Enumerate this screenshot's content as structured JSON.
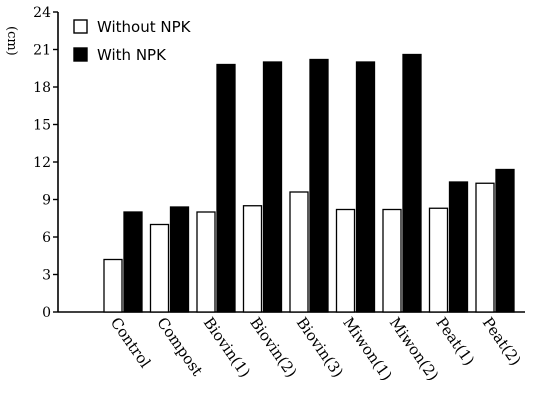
{
  "chart_data": {
    "type": "bar",
    "title": "",
    "xlabel": "",
    "ylabel": "(cm)",
    "ylim": [
      0,
      24
    ],
    "yticks": [
      0,
      3,
      6,
      9,
      12,
      15,
      18,
      21,
      24
    ],
    "grid": false,
    "legend_position": "top-left",
    "categories": [
      "Control",
      "Compost",
      "Biovin(1)",
      "Biovin(2)",
      "Biovin(3)",
      "Miwon(1)",
      "Miwon(2)",
      "Peat(1)",
      "Peat(2)"
    ],
    "series": [
      {
        "name": "Without NPK",
        "color": "#ffffff",
        "values": [
          4.2,
          7.0,
          8.0,
          8.5,
          9.6,
          8.2,
          8.2,
          8.3,
          10.3
        ]
      },
      {
        "name": "With NPK",
        "color": "#000000",
        "values": [
          8.0,
          8.4,
          19.8,
          20.0,
          20.2,
          20.0,
          20.6,
          10.4,
          11.4
        ]
      }
    ]
  }
}
